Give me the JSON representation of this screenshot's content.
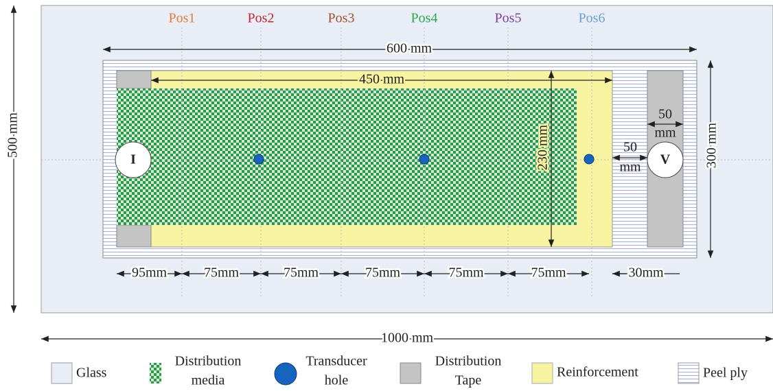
{
  "positions": [
    {
      "label": "Pos1",
      "color": "#e07b39"
    },
    {
      "label": "Pos2",
      "color": "#c0282d"
    },
    {
      "label": "Pos3",
      "color": "#a0522d"
    },
    {
      "label": "Pos4",
      "color": "#2aa84a"
    },
    {
      "label": "Pos5",
      "color": "#7b3fa0"
    },
    {
      "label": "Pos6",
      "color": "#6a9fd8"
    }
  ],
  "dimensions": {
    "peel_ply_width": "600 mm",
    "reinforcement_width": "450 mm",
    "reinforcement_height": "230 mm",
    "peel_ply_height": "300 mm",
    "glass_height": "500 mm",
    "glass_width": "1000 mm",
    "tape_width": [
      "50",
      "mm"
    ],
    "gap": [
      "50",
      "mm"
    ],
    "spacings": [
      "95mm",
      "75mm",
      "75mm",
      "75mm",
      "75mm",
      "75mm",
      "30mm"
    ]
  },
  "ports": {
    "inlet": "I",
    "vent": "V"
  },
  "legend": [
    {
      "lines": [
        "Glass"
      ]
    },
    {
      "lines": [
        "Distribution",
        "media"
      ]
    },
    {
      "lines": [
        "Transducer",
        "hole"
      ]
    },
    {
      "lines": [
        "Distribution",
        "Tape"
      ]
    },
    {
      "lines": [
        "Reinforcement"
      ]
    },
    {
      "lines": [
        "Peel ply"
      ]
    }
  ]
}
